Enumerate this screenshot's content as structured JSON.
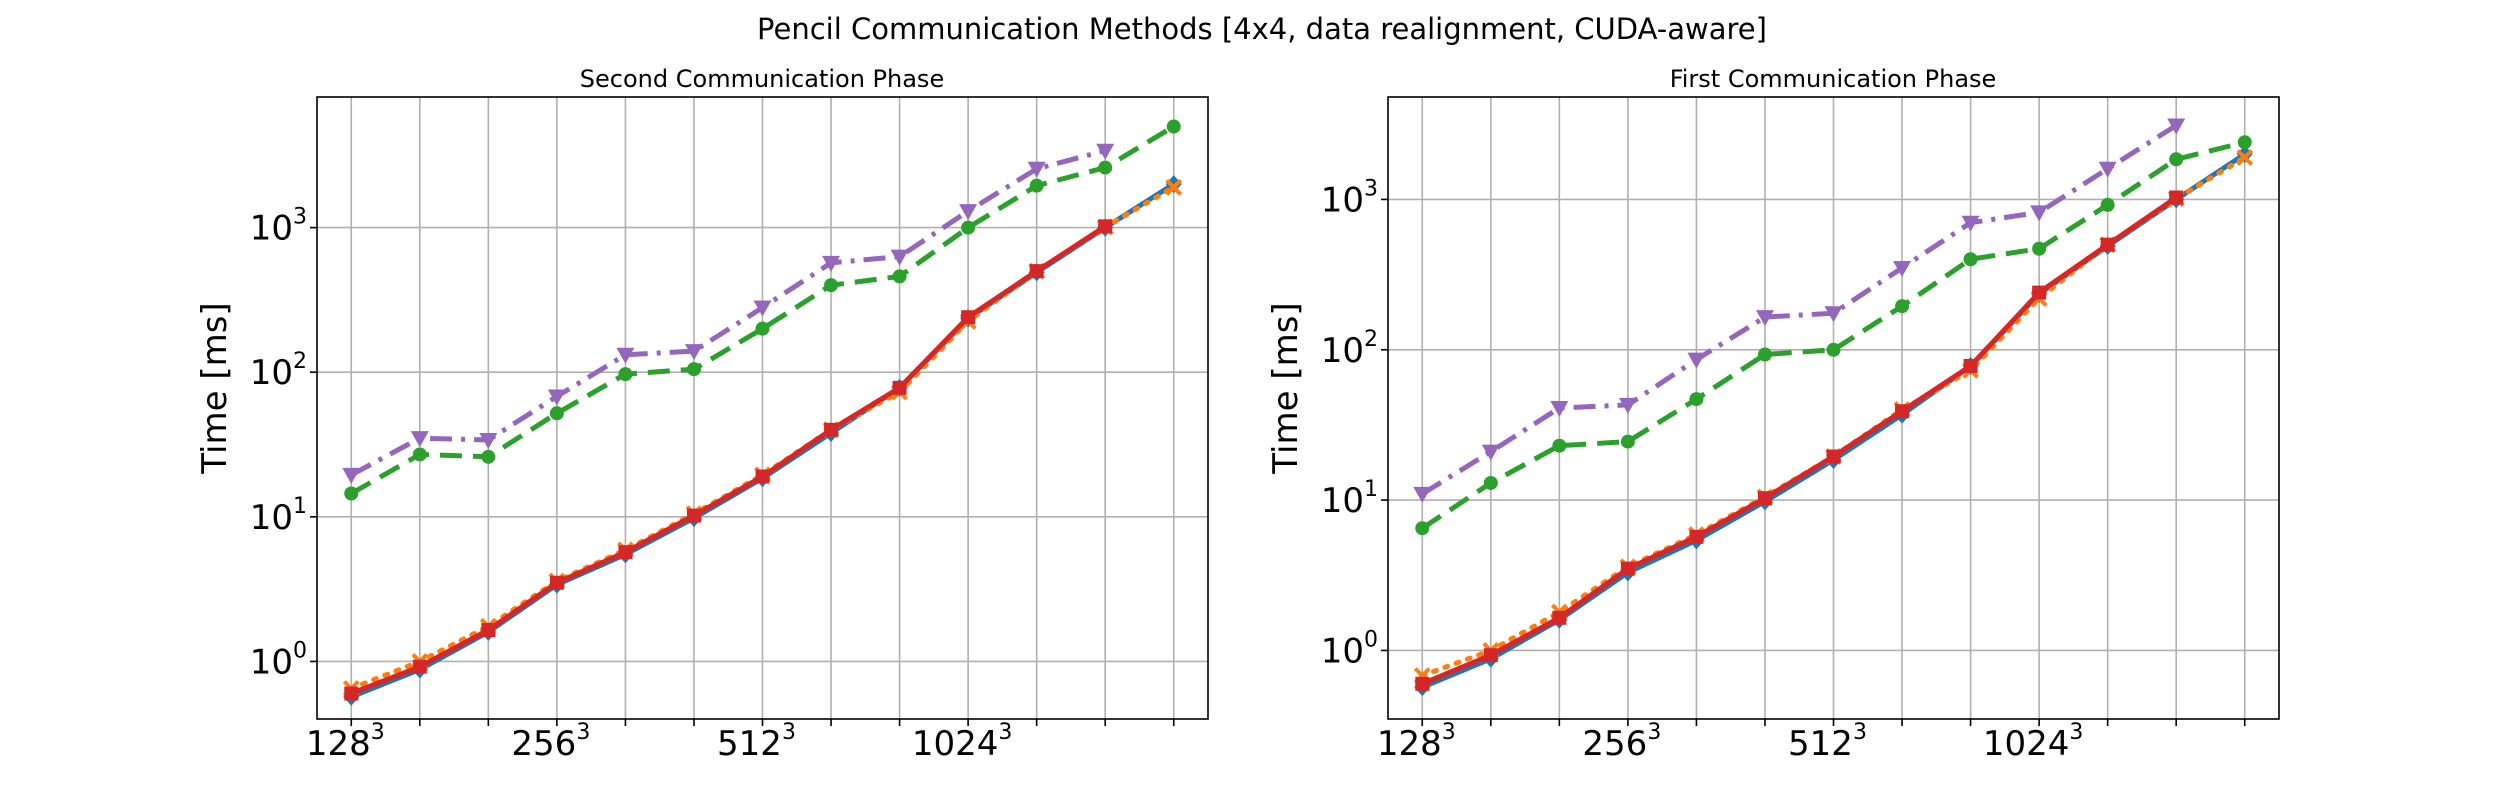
{
  "figure": {
    "title": "Pencil Communication Methods [4x4, data realignment, CUDA-aware]"
  },
  "chart_data": [
    {
      "type": "line",
      "title": "Second Communication Phase",
      "xlabel": "",
      "ylabel": "Time [ms]",
      "yscale": "log",
      "ylim": [
        0.4,
        8000
      ],
      "grid": true,
      "xlim": [
        0.5,
        13.5
      ],
      "x_ticks": [
        {
          "x": 1,
          "base": "128",
          "exp": "3"
        },
        {
          "x": 4,
          "base": "256",
          "exp": "3"
        },
        {
          "x": 7,
          "base": "512",
          "exp": "3"
        },
        {
          "x": 10,
          "base": "1024",
          "exp": "3"
        }
      ],
      "y_ticks": [
        {
          "value": 1,
          "base": "10",
          "exp": "0"
        },
        {
          "value": 10,
          "base": "10",
          "exp": "1"
        },
        {
          "value": 100,
          "base": "10",
          "exp": "2"
        },
        {
          "value": 1000,
          "base": "10",
          "exp": "3"
        }
      ],
      "x": [
        1,
        2,
        3,
        4,
        5,
        6,
        7,
        8,
        9,
        10,
        11,
        12,
        13
      ],
      "series": [
        {
          "color": "#1f77b4",
          "linestyle": "solid",
          "marker": "diamond",
          "values": [
            0.57,
            0.88,
            1.6,
            3.4,
            5.5,
            9.8,
            18.5,
            38,
            78,
            235,
            490,
            1000,
            2000
          ]
        },
        {
          "color": "#ff7f0e",
          "linestyle": "dotted",
          "marker": "x",
          "values": [
            0.65,
            1.0,
            1.75,
            3.6,
            5.9,
            10.5,
            19.5,
            40,
            73,
            225,
            500,
            1010,
            1900
          ]
        },
        {
          "color": "#2ca02c",
          "linestyle": "dashed",
          "marker": "circle",
          "values": [
            14.5,
            27,
            26,
            52,
            97,
            105,
            200,
            400,
            460,
            1000,
            1950,
            2600,
            5000
          ]
        },
        {
          "color": "#d62728",
          "linestyle": "solid",
          "marker": "square",
          "values": [
            0.6,
            0.92,
            1.65,
            3.5,
            5.7,
            10.2,
            19,
            40,
            78,
            240,
            500,
            1020,
            null
          ]
        },
        {
          "color": "#9467bd",
          "linestyle": "dashdot",
          "marker": "triangle-down",
          "values": [
            19.5,
            35,
            34,
            68,
            132,
            140,
            280,
            570,
            630,
            1300,
            2550,
            3400,
            null
          ]
        }
      ]
    },
    {
      "type": "line",
      "title": "First Communication Phase",
      "xlabel": "",
      "ylabel": "Time [ms]",
      "yscale": "log",
      "ylim": [
        0.35,
        4800
      ],
      "grid": true,
      "xlim": [
        0.5,
        13.5
      ],
      "x_ticks": [
        {
          "x": 1,
          "base": "128",
          "exp": "3"
        },
        {
          "x": 4,
          "base": "256",
          "exp": "3"
        },
        {
          "x": 7,
          "base": "512",
          "exp": "3"
        },
        {
          "x": 10,
          "base": "1024",
          "exp": "3"
        }
      ],
      "y_ticks": [
        {
          "value": 1,
          "base": "10",
          "exp": "0"
        },
        {
          "value": 10,
          "base": "10",
          "exp": "1"
        },
        {
          "value": 100,
          "base": "10",
          "exp": "2"
        },
        {
          "value": 1000,
          "base": "10",
          "exp": "3"
        }
      ],
      "x": [
        1,
        2,
        3,
        4,
        5,
        6,
        7,
        8,
        9,
        10,
        11,
        12,
        13
      ],
      "series": [
        {
          "color": "#1f77b4",
          "linestyle": "solid",
          "marker": "diamond",
          "values": [
            0.57,
            0.88,
            1.6,
            3.3,
            5.4,
            9.8,
            18.5,
            37,
            78,
            235,
            490,
            1000,
            2000
          ]
        },
        {
          "color": "#ff7f0e",
          "linestyle": "dotted",
          "marker": "x",
          "values": [
            0.68,
            1.0,
            1.8,
            3.6,
            5.9,
            10.5,
            19.5,
            40,
            73,
            220,
            500,
            1010,
            1900
          ]
        },
        {
          "color": "#2ca02c",
          "linestyle": "dashed",
          "marker": "circle",
          "values": [
            6.5,
            13,
            23,
            24.5,
            47,
            93,
            100,
            195,
            400,
            470,
            920,
            1850,
            2400
          ]
        },
        {
          "color": "#d62728",
          "linestyle": "solid",
          "marker": "square",
          "values": [
            0.6,
            0.93,
            1.65,
            3.5,
            5.7,
            10.3,
            19.5,
            39,
            78,
            240,
            500,
            1030,
            null
          ]
        },
        {
          "color": "#9467bd",
          "linestyle": "dashdot",
          "marker": "triangle-down",
          "values": [
            11,
            21,
            41,
            43,
            86,
            165,
            175,
            350,
            700,
            820,
            1600,
            3100,
            null
          ]
        }
      ]
    }
  ]
}
